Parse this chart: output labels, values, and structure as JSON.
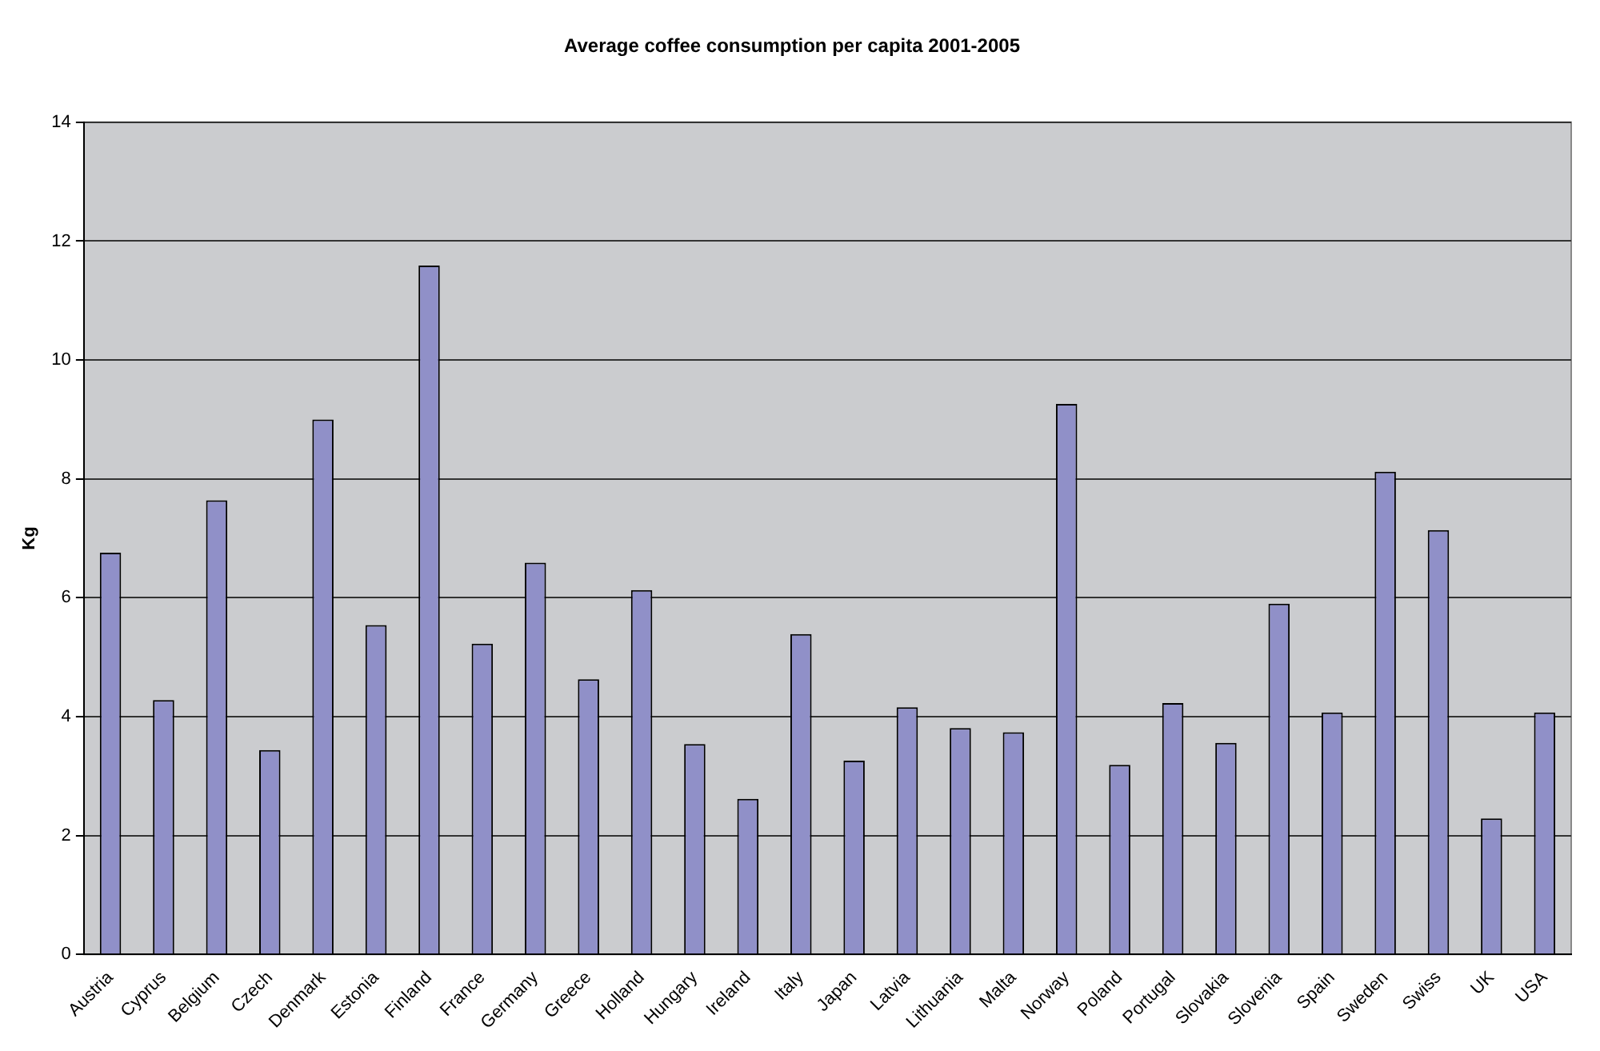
{
  "chart_data": {
    "type": "bar",
    "title": "Average coffee consumption per capita 2001-2005",
    "ylabel": "Kg",
    "categories": [
      "Austria",
      "Cyprus",
      "Belgium",
      "Czech",
      "Denmark",
      "Estonia",
      "Finland",
      "France",
      "Germany",
      "Greece",
      "Holland",
      "Hungary",
      "Ireland",
      "Italy",
      "Japan",
      "Latvia",
      "Lithuania",
      "Malta",
      "Norway",
      "Poland",
      "Portugal",
      "Slovakia",
      "Slovenia",
      "Spain",
      "Sweden",
      "Swiss",
      "UK",
      "USA"
    ],
    "values": [
      6.76,
      4.28,
      7.64,
      3.44,
      9.0,
      5.54,
      11.59,
      5.23,
      6.59,
      4.63,
      6.13,
      3.54,
      2.62,
      5.39,
      3.26,
      4.16,
      3.81,
      3.74,
      9.26,
      3.19,
      4.23,
      3.56,
      5.9,
      4.07,
      8.12,
      7.14,
      2.29,
      4.07
    ],
    "color": "#9090c8",
    "ylim": [
      0,
      14
    ],
    "yticks": [
      0,
      2,
      4,
      6,
      8,
      10,
      12,
      14
    ],
    "grid": "y",
    "legend": false
  }
}
